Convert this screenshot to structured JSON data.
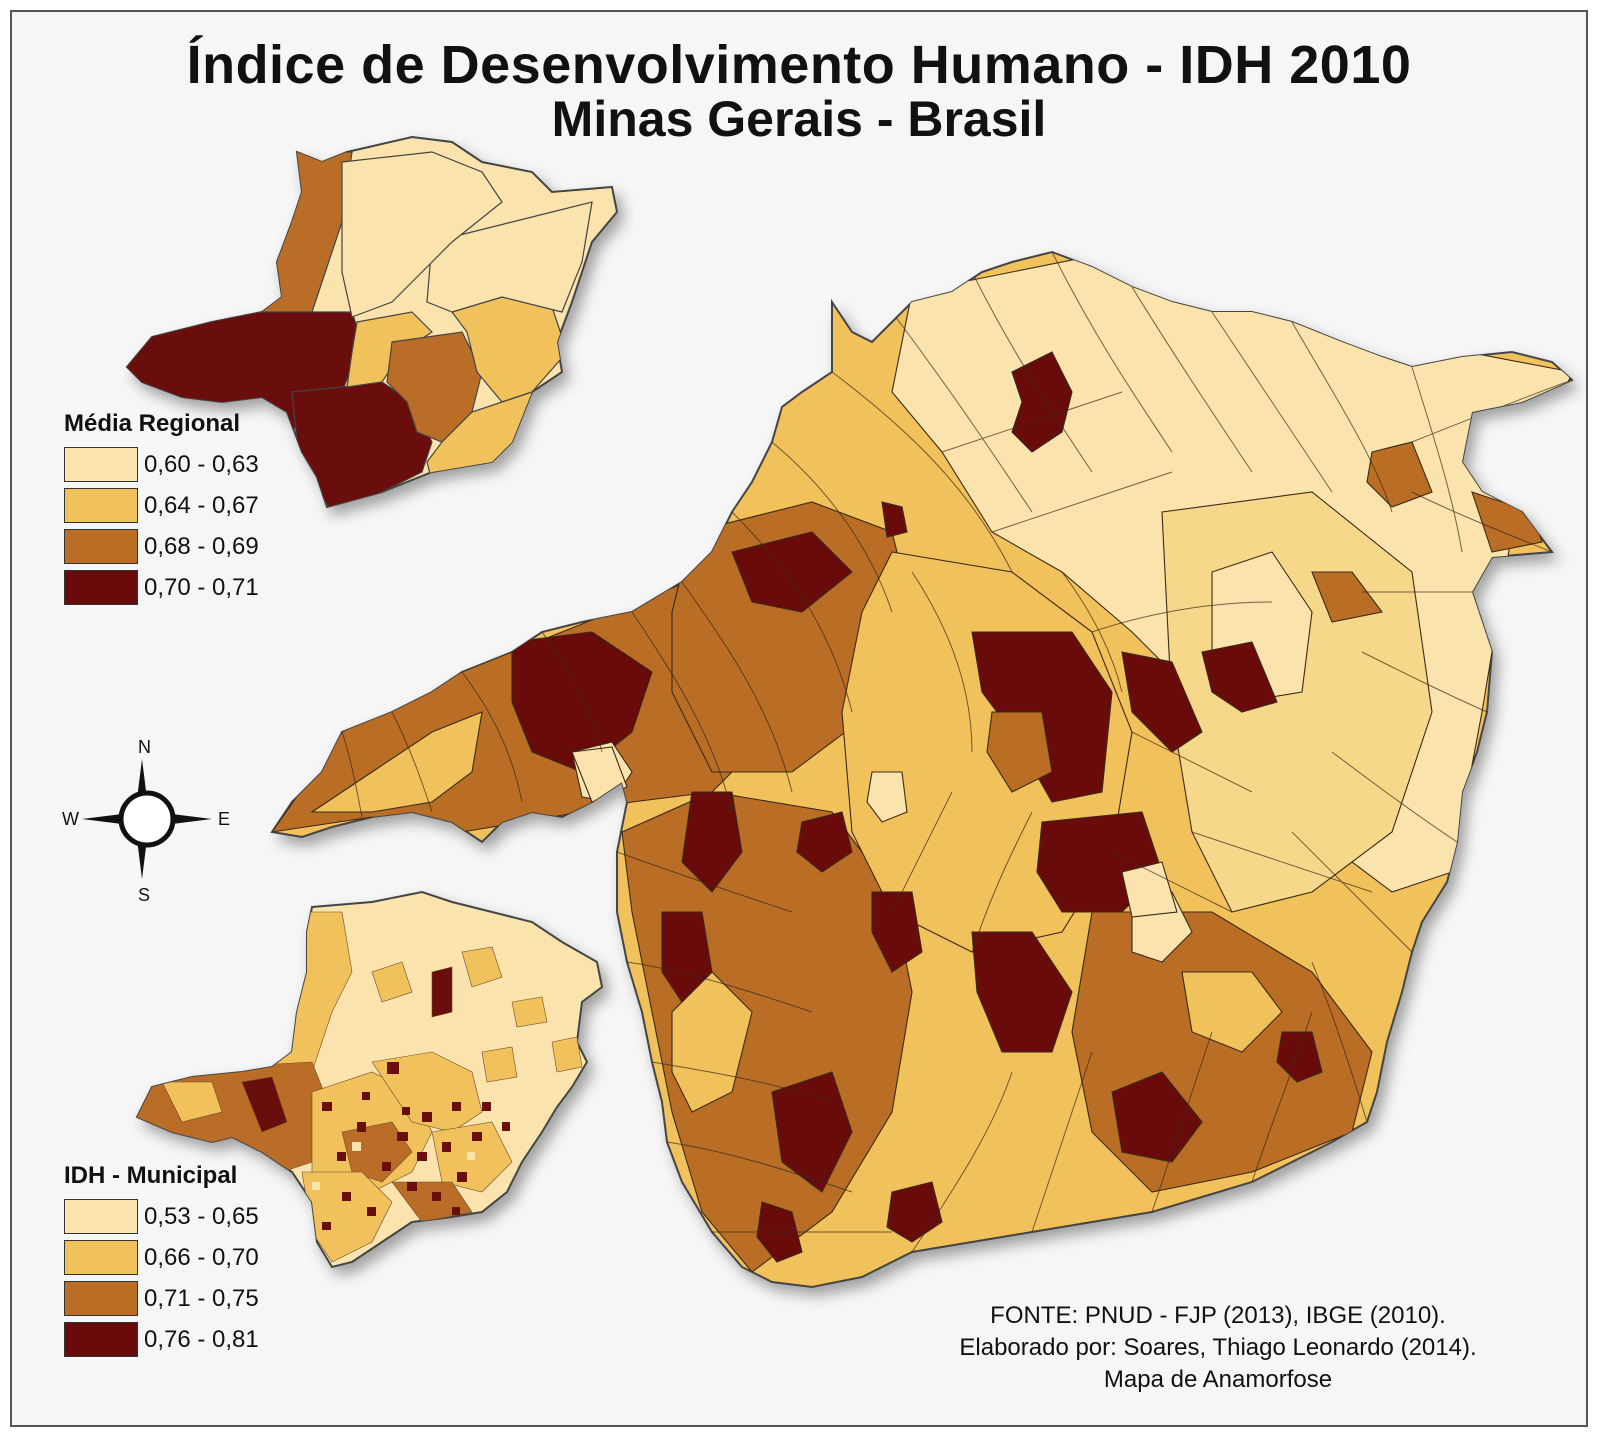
{
  "title": {
    "line1": "Índice de Desenvolvimento Humano - IDH 2010",
    "line2": "Minas Gerais - Brasil"
  },
  "legend_regional": {
    "title": "Média Regional",
    "items": [
      {
        "label": "0,60 - 0,63",
        "color": "#fbe3ad"
      },
      {
        "label": "0,64 - 0,67",
        "color": "#f1c15c"
      },
      {
        "label": "0,68 - 0,69",
        "color": "#b96d25"
      },
      {
        "label": "0,70 - 0,71",
        "color": "#6a0b0b"
      }
    ]
  },
  "legend_municipal": {
    "title": "IDH - Municipal",
    "items": [
      {
        "label": "0,53 - 0,65",
        "color": "#fbe3ad"
      },
      {
        "label": "0,66 - 0,70",
        "color": "#f1c15c"
      },
      {
        "label": "0,71 - 0,75",
        "color": "#b96d25"
      },
      {
        "label": "0,76 - 0,81",
        "color": "#6a0b0b"
      }
    ]
  },
  "compass": {
    "n": "N",
    "s": "S",
    "e": "E",
    "w": "W"
  },
  "source": {
    "line1": "FONTE: PNUD - FJP (2013), IBGE (2010).",
    "line2": "Elaborado por: Soares, Thiago Leonardo (2014).",
    "line3": "Mapa de Anamorfose"
  }
}
